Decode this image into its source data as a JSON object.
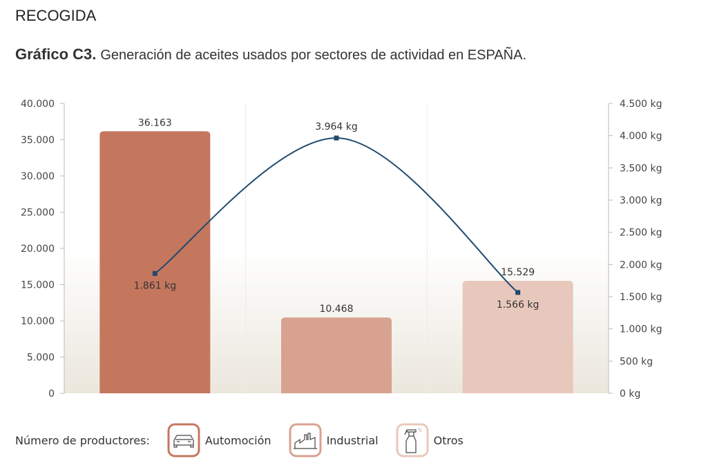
{
  "section": "RECOGIDA",
  "title": {
    "label": "Gráfico C3.",
    "text": "Generación de aceites usados por sectores de actividad en ESPAÑA."
  },
  "chart_data": {
    "type": "bar+line",
    "categories": [
      "Automoción",
      "Industrial",
      "Otros"
    ],
    "series": [
      {
        "type": "bar",
        "axis": "left",
        "values": [
          36163,
          10468,
          15529
        ],
        "labels": [
          "36.163",
          "10.468",
          "15.529"
        ],
        "colors": [
          "#c5775e",
          "#d8a290",
          "#e8c8bc"
        ]
      },
      {
        "type": "line",
        "axis": "right",
        "values": [
          1861,
          3964,
          1566
        ],
        "labels": [
          "1.861 kg",
          "3.964 kg",
          "1.566 kg"
        ],
        "color": "#1f4a6e"
      }
    ],
    "ylim_left": [
      0,
      40000
    ],
    "yticks_left": [
      "0",
      "5.000",
      "10.000",
      "15.000",
      "20.000",
      "25.000",
      "30.000",
      "35.000",
      "40.000"
    ],
    "ylim_right": [
      0,
      4500
    ],
    "yticks_right": [
      "0 kg",
      "500 kg",
      "1.000 kg",
      "1.500 kg",
      "2.000 kg",
      "2.500 kg",
      "3.000 kg",
      "3.500 kg",
      "4.000 kg",
      "4.500 kg"
    ]
  },
  "legend": {
    "title": "Número de productores:",
    "items": [
      {
        "label": "Automoción",
        "icon": "car-icon",
        "color": "#c5775e"
      },
      {
        "label": "Industrial",
        "icon": "factory-icon",
        "color": "#d8a290"
      },
      {
        "label": "Otros",
        "icon": "spray-bottle-icon",
        "color": "#e8c8bc"
      }
    ]
  }
}
